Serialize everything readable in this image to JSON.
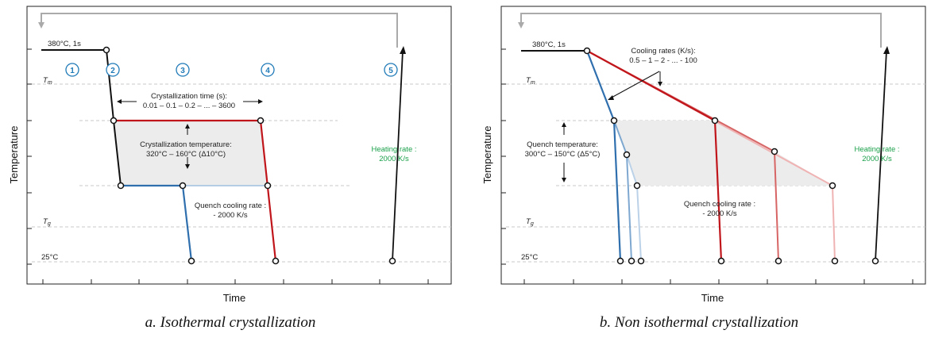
{
  "panel_a": {
    "caption": "a. Isothermal crystallization",
    "xlabel": "Time",
    "ylabel": "Temperature",
    "start_label": "380°C, 1s",
    "tm_label": "T",
    "tm_sub": "m",
    "tg_label": "T",
    "tg_sub": "g",
    "room_label": "25°C",
    "steps": [
      "1",
      "2",
      "3",
      "4",
      "5"
    ],
    "cryst_time_title": "Crystallization time (s):",
    "cryst_time_values": "0.01 – 0.1 – 0.2 – ... – 3600",
    "cryst_temp_title": "Crystallization temperature:",
    "cryst_temp_values": "320°C – 160°C (Δ10°C)",
    "quench_title": "Quench cooling rate :",
    "quench_value": "- 2000 K/s",
    "heating_title": "Heating rate :",
    "heating_value": "2000 K/s"
  },
  "panel_b": {
    "caption": "b. Non isothermal crystallization",
    "xlabel": "Time",
    "ylabel": "Temperature",
    "start_label": "380°C, 1s",
    "tm_label": "T",
    "tm_sub": "m",
    "tg_label": "T",
    "tg_sub": "g",
    "room_label": "25°C",
    "cooling_title": "Cooling rates (K/s):",
    "cooling_values": "0.5 – 1 – 2 - ... - 100",
    "quench_temp_title": "Quench temperature:",
    "quench_temp_values": "300°C – 150°C (Δ5°C)",
    "quench_title": "Quench cooling rate :",
    "quench_value": "- 2000 K/s",
    "heating_title": "Heating rate :",
    "heating_value": "2000 K/s"
  },
  "colors": {
    "red": "#c0151b",
    "blue": "#2f6fae",
    "green": "#1aa04a",
    "shade": "#ececec",
    "grey_arrow": "#aaaaaa"
  }
}
